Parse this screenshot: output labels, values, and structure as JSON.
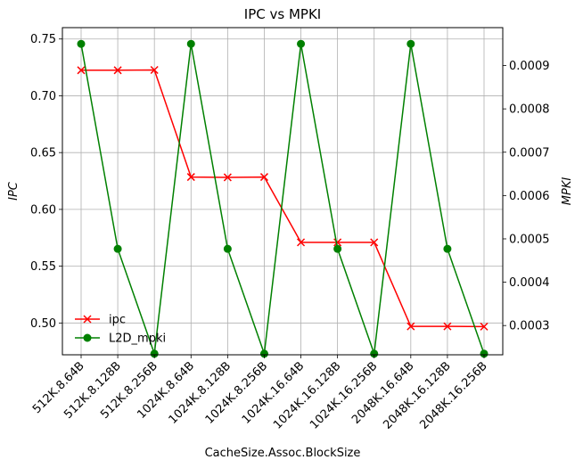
{
  "chart_data": {
    "type": "line",
    "title": "IPC vs MPKI",
    "xlabel": "CacheSize.Assoc.BlockSize",
    "ylabel": "IPC",
    "y2label": "MPKI",
    "grid": true,
    "legend_position": "lower-left",
    "categories": [
      "512K.8.64B",
      "512K.8.128B",
      "512K.8.256B",
      "1024K.8.64B",
      "1024K.8.128B",
      "1024K.8.256B",
      "1024K.16.64B",
      "1024K.16.128B",
      "1024K.16.256B",
      "2048K.16.64B",
      "2048K.16.128B",
      "2048K.16.256B"
    ],
    "ylim": [
      0.472,
      0.76
    ],
    "y2lim": [
      0.0002325,
      0.0009875
    ],
    "yticks": [
      "0.50",
      "0.55",
      "0.60",
      "0.65",
      "0.70",
      "0.75"
    ],
    "y2ticks": [
      "0.0003",
      "0.0004",
      "0.0005",
      "0.0006",
      "0.0007",
      "0.0008",
      "0.0009"
    ],
    "series": [
      {
        "name": "ipc",
        "axis": "left",
        "color": "#ff0000",
        "marker": "x",
        "values": [
          0.7225,
          0.7225,
          0.7227,
          0.6285,
          0.6282,
          0.6285,
          0.571,
          0.571,
          0.571,
          0.497,
          0.497,
          0.4968
        ]
      },
      {
        "name": "L2D_mpki",
        "axis": "right",
        "color": "#008000",
        "marker": "o",
        "values": [
          0.00095,
          0.000477,
          0.000235,
          0.00095,
          0.000477,
          0.000235,
          0.00095,
          0.000477,
          0.000235,
          0.00095,
          0.000477,
          0.000235
        ]
      }
    ]
  }
}
